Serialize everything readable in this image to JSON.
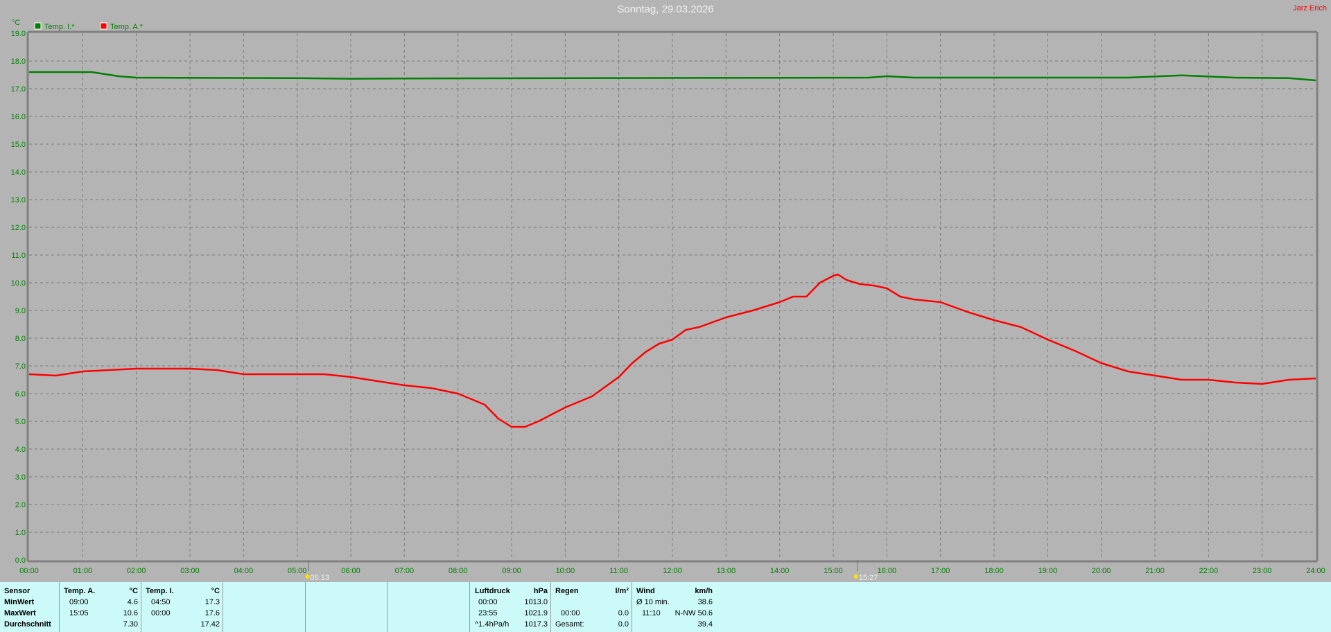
{
  "header": {
    "title": "Sonntag, 29.03.2026",
    "author": "Jarz Erich"
  },
  "chart_data": {
    "type": "line",
    "title": "Sonntag, 29.03.2026",
    "ylabel": "°C",
    "ylim": [
      0,
      19
    ],
    "yticks": [
      "0.0",
      "1.0",
      "2.0",
      "3.0",
      "4.0",
      "5.0",
      "6.0",
      "7.0",
      "8.0",
      "9.0",
      "10.0",
      "11.0",
      "12.0",
      "13.0",
      "14.0",
      "15.0",
      "16.0",
      "17.0",
      "18.0",
      "19.0"
    ],
    "xticks": [
      "00:00",
      "01:00",
      "02:00",
      "03:00",
      "04:00",
      "05:00",
      "06:00",
      "07:00",
      "08:00",
      "09:00",
      "10:00",
      "11:00",
      "12:00",
      "13:00",
      "14:00",
      "15:00",
      "16:00",
      "17:00",
      "18:00",
      "19:00",
      "20:00",
      "21:00",
      "22:00",
      "23:00",
      "24:00"
    ],
    "grid": true,
    "legend_position": "top-left",
    "sunrise": "05:13",
    "sunset": "15:27",
    "series": [
      {
        "name": "Temp. I.*",
        "color": "#008000",
        "x": [
          "00:00",
          "01:10",
          "01:40",
          "02:00",
          "05:00",
          "06:00",
          "07:00",
          "10:00",
          "15:40",
          "16:00",
          "16:30",
          "20:30",
          "21:30",
          "22:30",
          "23:30",
          "24:00"
        ],
        "y": [
          17.6,
          17.6,
          17.45,
          17.4,
          17.38,
          17.36,
          17.37,
          17.38,
          17.4,
          17.45,
          17.4,
          17.4,
          17.48,
          17.4,
          17.38,
          17.3
        ]
      },
      {
        "name": "Temp. A.*",
        "color": "#ff0000",
        "x": [
          "00:00",
          "00:30",
          "01:00",
          "01:30",
          "02:00",
          "02:30",
          "03:00",
          "03:30",
          "04:00",
          "04:30",
          "05:00",
          "05:30",
          "06:00",
          "06:30",
          "07:00",
          "07:30",
          "08:00",
          "08:30",
          "08:45",
          "09:00",
          "09:15",
          "09:30",
          "10:00",
          "10:30",
          "11:00",
          "11:15",
          "11:30",
          "11:45",
          "12:00",
          "12:15",
          "12:30",
          "13:00",
          "13:30",
          "14:00",
          "14:15",
          "14:30",
          "14:45",
          "15:00",
          "15:05",
          "15:15",
          "15:30",
          "15:45",
          "16:00",
          "16:15",
          "16:30",
          "17:00",
          "17:30",
          "18:00",
          "18:30",
          "19:00",
          "19:30",
          "20:00",
          "20:30",
          "21:00",
          "21:30",
          "22:00",
          "22:30",
          "23:00",
          "23:30",
          "24:00"
        ],
        "y": [
          6.7,
          6.65,
          6.8,
          6.85,
          6.9,
          6.9,
          6.9,
          6.85,
          6.7,
          6.7,
          6.7,
          6.7,
          6.6,
          6.45,
          6.3,
          6.2,
          6.0,
          5.6,
          5.1,
          4.8,
          4.8,
          5.0,
          5.5,
          5.9,
          6.6,
          7.1,
          7.5,
          7.8,
          7.95,
          8.3,
          8.4,
          8.75,
          9.0,
          9.3,
          9.5,
          9.5,
          10.0,
          10.25,
          10.3,
          10.1,
          9.95,
          9.9,
          9.8,
          9.5,
          9.4,
          9.3,
          8.95,
          8.65,
          8.4,
          7.95,
          7.55,
          7.1,
          6.8,
          6.65,
          6.5,
          6.5,
          6.4,
          6.35,
          6.5,
          6.55
        ]
      }
    ]
  },
  "table": {
    "sensor": {
      "header": "Sensor",
      "min": "MinWert",
      "max": "MaxWert",
      "avg": "Durchschnitt"
    },
    "temp_a": {
      "header": "Temp. A.",
      "unit": "°C",
      "min_time": "09:00",
      "min": "4.6",
      "max_time": "15:05",
      "max": "10.6",
      "avg": "7.30"
    },
    "temp_i": {
      "header": "Temp. I.",
      "unit": "°C",
      "min_time": "04:50",
      "min": "17.3",
      "max_time": "00:00",
      "max": "17.6",
      "avg": "17.42"
    },
    "pressure": {
      "header": "Luftdruck",
      "unit": "hPa",
      "r1_time": "00:00",
      "r1": "1013.0",
      "r2_time": "23:55",
      "r2": "1021.9",
      "r3_label": "^1.4hPa/h",
      "r3": "1017.3"
    },
    "rain": {
      "header": "Regen",
      "unit": "l/m²",
      "r2_time": "00:00",
      "r2": "0.0",
      "r3_label": "Gesamt:",
      "r3": "0.0"
    },
    "wind": {
      "header": "Wind",
      "unit": "km/h",
      "r1_label": "Ø 10 min.",
      "r1": "38.6",
      "r2_time": "11:10",
      "r2": "N-NW 50.6",
      "r3": "39.4"
    }
  }
}
